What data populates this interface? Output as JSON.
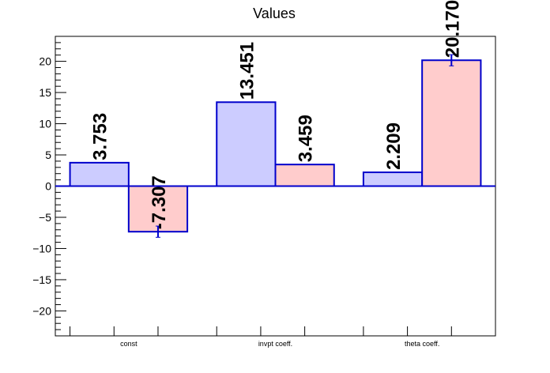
{
  "chart_data": {
    "type": "bar",
    "title": "Values",
    "categories": [
      "const",
      "invpt coeff.",
      "theta coeff."
    ],
    "series": [
      {
        "values": [
          3.753,
          13.451,
          2.209
        ],
        "errors": [
          0,
          0,
          0
        ],
        "fill": "#ccccff",
        "stroke": "#0000cc"
      },
      {
        "values": [
          -7.307,
          3.459,
          20.17
        ],
        "errors": [
          0.9,
          0,
          0.9
        ],
        "fill": "#ffcccc",
        "stroke": "#0000cc"
      }
    ],
    "data_labels": [
      [
        "3.753",
        "13.451",
        "2.209"
      ],
      [
        "-7.307",
        "3.459",
        "20.170"
      ]
    ],
    "ylim": [
      -24,
      24
    ],
    "yticks": [
      -20,
      -15,
      -10,
      -5,
      0,
      5,
      10,
      15,
      20
    ],
    "xlabel": "",
    "ylabel": "",
    "grid": false,
    "zero_line_color": "#0000cc"
  }
}
